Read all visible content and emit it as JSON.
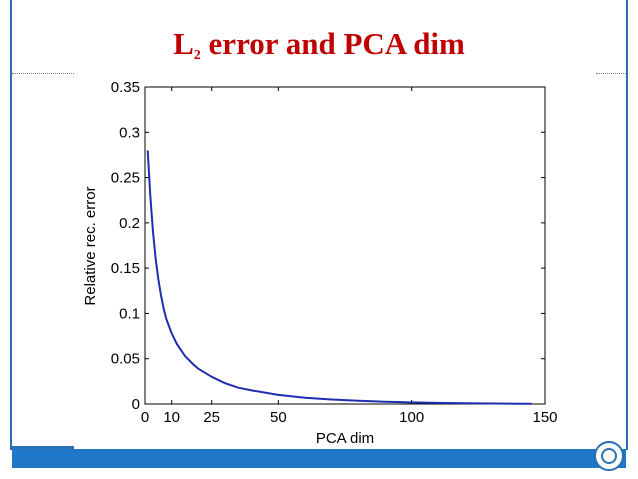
{
  "slide": {
    "title_main": "L",
    "title_sub": "2",
    "title_rest": " error and PCA dim"
  },
  "colors": {
    "frame": "#2a6fb3",
    "title": "#c00000",
    "series": "#1f2eb0"
  },
  "icons": {
    "corner": "circle-icon"
  },
  "chart_data": {
    "type": "line",
    "xlabel": "PCA dim",
    "ylabel": "Relative rec. error",
    "xlim": [
      0,
      150
    ],
    "ylim": [
      0,
      0.35
    ],
    "xticks": [
      0,
      10,
      25,
      50,
      100,
      150
    ],
    "yticks": [
      0,
      0.05,
      0.1,
      0.15,
      0.2,
      0.25,
      0.3,
      0.35
    ],
    "xtick_labels": [
      "0",
      "10",
      "25",
      "50",
      "100",
      "150"
    ],
    "ytick_labels": [
      "0",
      "0.05",
      "0.1",
      "0.15",
      "0.2",
      "0.25",
      "0.3",
      "0.35"
    ],
    "grid": false,
    "series": [
      {
        "x": [
          1,
          2,
          3,
          4,
          5,
          6,
          7,
          8,
          10,
          12,
          15,
          18,
          20,
          25,
          30,
          35,
          40,
          50,
          60,
          70,
          80,
          90,
          100,
          110,
          120,
          130,
          140,
          145
        ],
        "y": [
          0.28,
          0.23,
          0.19,
          0.16,
          0.138,
          0.12,
          0.105,
          0.094,
          0.078,
          0.066,
          0.053,
          0.044,
          0.039,
          0.03,
          0.023,
          0.018,
          0.015,
          0.01,
          0.007,
          0.005,
          0.0035,
          0.0025,
          0.0018,
          0.0012,
          0.0008,
          0.0005,
          0.0003,
          0.0002
        ]
      }
    ]
  }
}
